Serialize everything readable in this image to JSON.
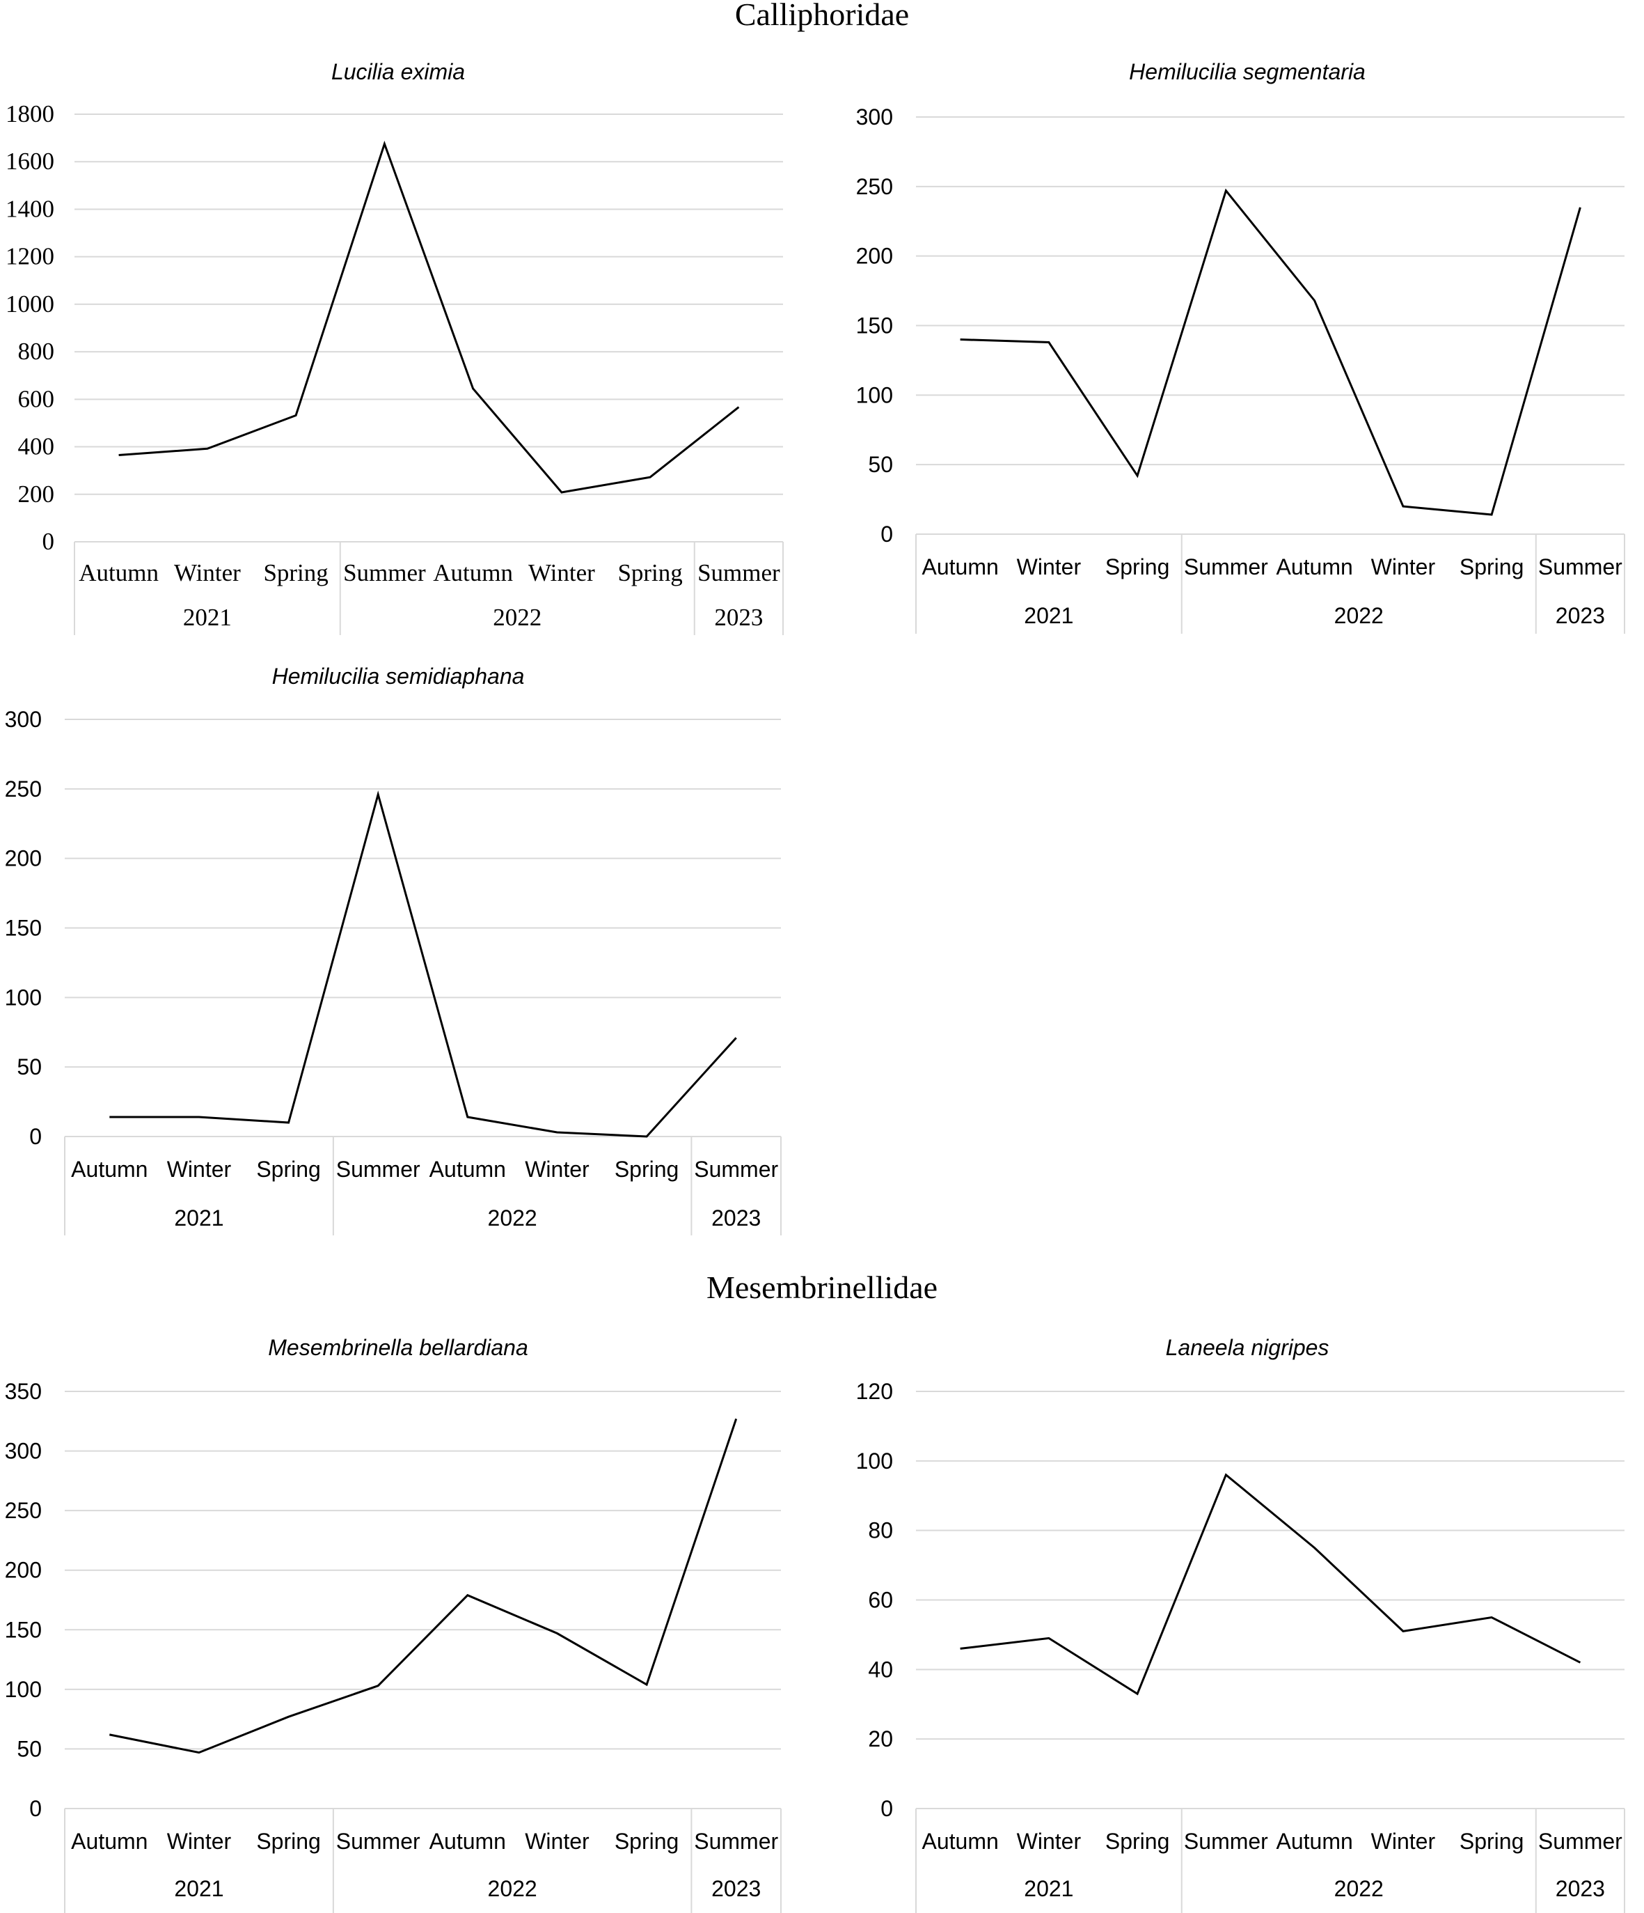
{
  "sections": {
    "calliphoridae": "Calliphoridae",
    "mesembrinellidae": "Mesembrinellidae"
  },
  "chart_data": [
    {
      "type": "line",
      "title": "Lucilia eximia",
      "categories": [
        "Autumn",
        "Winter",
        "Spring",
        "Summer",
        "Autumn",
        "Winter",
        "Spring",
        "Summer"
      ],
      "groups": [
        {
          "label": "2021",
          "span": 3
        },
        {
          "label": "2022",
          "span": 4
        },
        {
          "label": "2023",
          "span": 1
        }
      ],
      "values": [
        365,
        392,
        532,
        1675,
        645,
        208,
        272,
        567
      ],
      "ylim": [
        0,
        1800
      ],
      "yticks": [
        0,
        200,
        400,
        600,
        800,
        1000,
        1200,
        1400,
        1600,
        1800
      ],
      "grid": true
    },
    {
      "type": "line",
      "title": "Hemilucilia segmentaria",
      "categories": [
        "Autumn",
        "Winter",
        "Spring",
        "Summer",
        "Autumn",
        "Winter",
        "Spring",
        "Summer"
      ],
      "groups": [
        {
          "label": "2021",
          "span": 3
        },
        {
          "label": "2022",
          "span": 4
        },
        {
          "label": "2023",
          "span": 1
        }
      ],
      "values": [
        140,
        138,
        42,
        247,
        168,
        20,
        14,
        235
      ],
      "ylim": [
        0,
        300
      ],
      "yticks": [
        0,
        50,
        100,
        150,
        200,
        250,
        300
      ],
      "grid": true
    },
    {
      "type": "line",
      "title": "Hemilucilia semidiaphana",
      "categories": [
        "Autumn",
        "Winter",
        "Spring",
        "Summer",
        "Autumn",
        "Winter",
        "Spring",
        "Summer"
      ],
      "groups": [
        {
          "label": "2021",
          "span": 3
        },
        {
          "label": "2022",
          "span": 4
        },
        {
          "label": "2023",
          "span": 1
        }
      ],
      "values": [
        14,
        14,
        10,
        246,
        14,
        3,
        0,
        71
      ],
      "ylim": [
        0,
        300
      ],
      "yticks": [
        0,
        50,
        100,
        150,
        200,
        250,
        300
      ],
      "grid": true
    },
    {
      "type": "line",
      "title": "Mesembrinella bellardiana",
      "categories": [
        "Autumn",
        "Winter",
        "Spring",
        "Summer",
        "Autumn",
        "Winter",
        "Spring",
        "Summer"
      ],
      "groups": [
        {
          "label": "2021",
          "span": 3
        },
        {
          "label": "2022",
          "span": 4
        },
        {
          "label": "2023",
          "span": 1
        }
      ],
      "values": [
        62,
        47,
        77,
        103,
        179,
        147,
        104,
        327
      ],
      "ylim": [
        0,
        350
      ],
      "yticks": [
        0,
        50,
        100,
        150,
        200,
        250,
        300,
        350
      ],
      "grid": true
    },
    {
      "type": "line",
      "title": "Laneela nigripes",
      "categories": [
        "Autumn",
        "Winter",
        "Spring",
        "Summer",
        "Autumn",
        "Winter",
        "Spring",
        "Summer"
      ],
      "groups": [
        {
          "label": "2021",
          "span": 3
        },
        {
          "label": "2022",
          "span": 4
        },
        {
          "label": "2023",
          "span": 1
        }
      ],
      "values": [
        46,
        49,
        33,
        96,
        75,
        51,
        55,
        42
      ],
      "ylim": [
        0,
        120
      ],
      "yticks": [
        0,
        20,
        40,
        60,
        80,
        100,
        120
      ],
      "grid": true
    }
  ]
}
